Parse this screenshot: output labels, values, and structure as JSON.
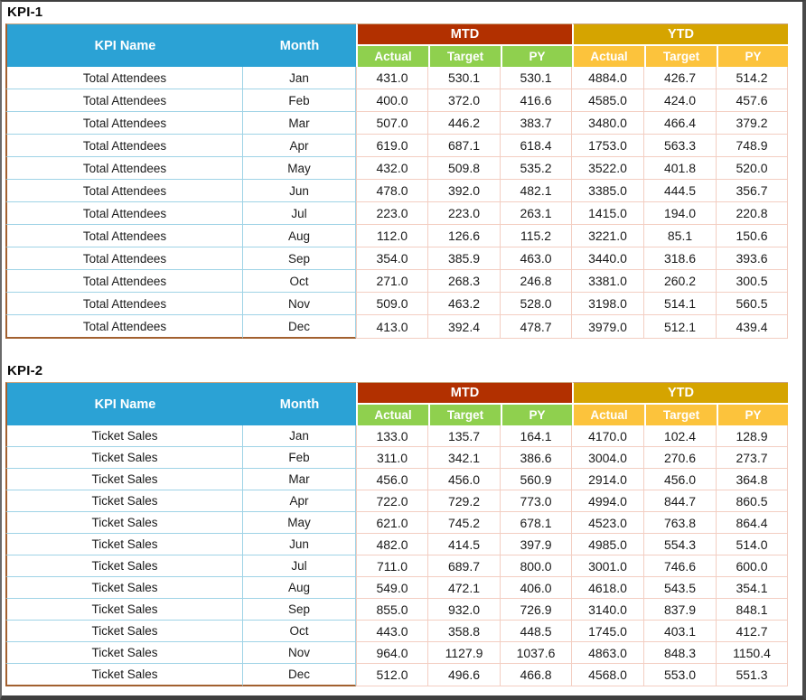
{
  "colors": {
    "header_blue": "#2ba2d5",
    "mtd_red": "#b23000",
    "ytd_gold": "#d5a400",
    "sub_green": "#8fd04e",
    "sub_amber": "#fcc33c",
    "border_blue": "#9fd3e6",
    "border_pink": "#f3cec2",
    "border_brown": "#a2602f",
    "frame_gray": "#3f3f3f"
  },
  "tables": [
    {
      "title": "KPI-1",
      "kpi_name": "Total Attendees",
      "headers": {
        "kpi_name": "KPI Name",
        "month": "Month",
        "mtd": "MTD",
        "ytd": "YTD",
        "sub": [
          "Actual",
          "Target",
          "PY"
        ]
      },
      "rows": [
        {
          "month": "Jan",
          "mtd": [
            "431.0",
            "530.1",
            "530.1"
          ],
          "ytd": [
            "4884.0",
            "426.7",
            "514.2"
          ]
        },
        {
          "month": "Feb",
          "mtd": [
            "400.0",
            "372.0",
            "416.6"
          ],
          "ytd": [
            "4585.0",
            "424.0",
            "457.6"
          ]
        },
        {
          "month": "Mar",
          "mtd": [
            "507.0",
            "446.2",
            "383.7"
          ],
          "ytd": [
            "3480.0",
            "466.4",
            "379.2"
          ]
        },
        {
          "month": "Apr",
          "mtd": [
            "619.0",
            "687.1",
            "618.4"
          ],
          "ytd": [
            "1753.0",
            "563.3",
            "748.9"
          ]
        },
        {
          "month": "May",
          "mtd": [
            "432.0",
            "509.8",
            "535.2"
          ],
          "ytd": [
            "3522.0",
            "401.8",
            "520.0"
          ]
        },
        {
          "month": "Jun",
          "mtd": [
            "478.0",
            "392.0",
            "482.1"
          ],
          "ytd": [
            "3385.0",
            "444.5",
            "356.7"
          ]
        },
        {
          "month": "Jul",
          "mtd": [
            "223.0",
            "223.0",
            "263.1"
          ],
          "ytd": [
            "1415.0",
            "194.0",
            "220.8"
          ]
        },
        {
          "month": "Aug",
          "mtd": [
            "112.0",
            "126.6",
            "115.2"
          ],
          "ytd": [
            "3221.0",
            "85.1",
            "150.6"
          ]
        },
        {
          "month": "Sep",
          "mtd": [
            "354.0",
            "385.9",
            "463.0"
          ],
          "ytd": [
            "3440.0",
            "318.6",
            "393.6"
          ]
        },
        {
          "month": "Oct",
          "mtd": [
            "271.0",
            "268.3",
            "246.8"
          ],
          "ytd": [
            "3381.0",
            "260.2",
            "300.5"
          ]
        },
        {
          "month": "Nov",
          "mtd": [
            "509.0",
            "463.2",
            "528.0"
          ],
          "ytd": [
            "3198.0",
            "514.1",
            "560.5"
          ]
        },
        {
          "month": "Dec",
          "mtd": [
            "413.0",
            "392.4",
            "478.7"
          ],
          "ytd": [
            "3979.0",
            "512.1",
            "439.4"
          ]
        }
      ]
    },
    {
      "title": "KPI-2",
      "kpi_name": "Ticket Sales",
      "headers": {
        "kpi_name": "KPI Name",
        "month": "Month",
        "mtd": "MTD",
        "ytd": "YTD",
        "sub": [
          "Actual",
          "Target",
          "PY"
        ]
      },
      "rows": [
        {
          "month": "Jan",
          "mtd": [
            "133.0",
            "135.7",
            "164.1"
          ],
          "ytd": [
            "4170.0",
            "102.4",
            "128.9"
          ]
        },
        {
          "month": "Feb",
          "mtd": [
            "311.0",
            "342.1",
            "386.6"
          ],
          "ytd": [
            "3004.0",
            "270.6",
            "273.7"
          ]
        },
        {
          "month": "Mar",
          "mtd": [
            "456.0",
            "456.0",
            "560.9"
          ],
          "ytd": [
            "2914.0",
            "456.0",
            "364.8"
          ]
        },
        {
          "month": "Apr",
          "mtd": [
            "722.0",
            "729.2",
            "773.0"
          ],
          "ytd": [
            "4994.0",
            "844.7",
            "860.5"
          ]
        },
        {
          "month": "May",
          "mtd": [
            "621.0",
            "745.2",
            "678.1"
          ],
          "ytd": [
            "4523.0",
            "763.8",
            "864.4"
          ]
        },
        {
          "month": "Jun",
          "mtd": [
            "482.0",
            "414.5",
            "397.9"
          ],
          "ytd": [
            "4985.0",
            "554.3",
            "514.0"
          ]
        },
        {
          "month": "Jul",
          "mtd": [
            "711.0",
            "689.7",
            "800.0"
          ],
          "ytd": [
            "3001.0",
            "746.6",
            "600.0"
          ]
        },
        {
          "month": "Aug",
          "mtd": [
            "549.0",
            "472.1",
            "406.0"
          ],
          "ytd": [
            "4618.0",
            "543.5",
            "354.1"
          ]
        },
        {
          "month": "Sep",
          "mtd": [
            "855.0",
            "932.0",
            "726.9"
          ],
          "ytd": [
            "3140.0",
            "837.9",
            "848.1"
          ]
        },
        {
          "month": "Oct",
          "mtd": [
            "443.0",
            "358.8",
            "448.5"
          ],
          "ytd": [
            "1745.0",
            "403.1",
            "412.7"
          ]
        },
        {
          "month": "Nov",
          "mtd": [
            "964.0",
            "1127.9",
            "1037.6"
          ],
          "ytd": [
            "4863.0",
            "848.3",
            "1150.4"
          ]
        },
        {
          "month": "Dec",
          "mtd": [
            "512.0",
            "496.6",
            "466.8"
          ],
          "ytd": [
            "4568.0",
            "553.0",
            "551.3"
          ]
        }
      ]
    }
  ]
}
